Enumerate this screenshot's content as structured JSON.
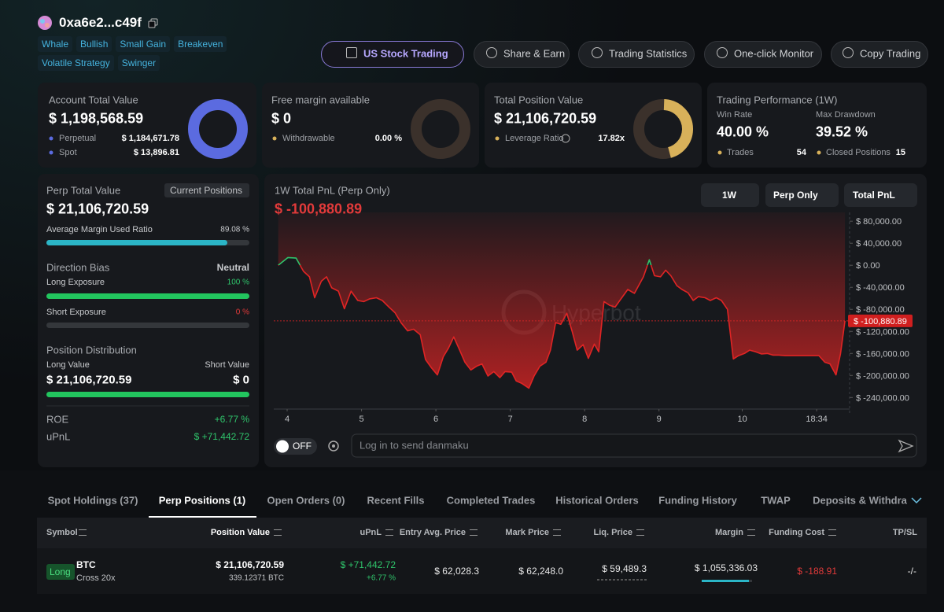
{
  "profile": {
    "address": "0xa6e2...c49f",
    "tags": [
      "Whale",
      "Bullish",
      "Small Gain",
      "Breakeven",
      "Volatile Strategy",
      "Swinger"
    ]
  },
  "nav": [
    "US Stock Trading",
    "Share & Earn",
    "Trading Statistics",
    "One-click Monitor",
    "Copy Trading"
  ],
  "cards": {
    "account": {
      "title": "Account Total Value",
      "value": "$ 1,198,568.59",
      "rows": [
        {
          "label": "Perpetual",
          "value": "$ 1,184,671.78"
        },
        {
          "label": "Spot",
          "value": "$ 13,896.81"
        }
      ]
    },
    "free_margin": {
      "title": "Free margin available",
      "value": "$ 0",
      "label": "Withdrawable",
      "ratio": "0.00 %"
    },
    "position": {
      "title": "Total Position Value",
      "value": "$ 21,106,720.59",
      "label": "Leverage Ratio",
      "ratio": "17.82x"
    },
    "performance": {
      "title": "Trading Performance (1W)",
      "win_rate_label": "Win Rate",
      "win_rate": "40.00 %",
      "drawdown_label": "Max Drawdown",
      "drawdown": "39.52 %",
      "trades_label": "Trades",
      "trades": "54",
      "closed_label": "Closed Positions",
      "closed": "15"
    }
  },
  "perp_panel": {
    "title": "Perp Total Value",
    "button": "Current Positions",
    "value": "$ 21,106,720.59",
    "margin_used": {
      "label": "Average Margin Used Ratio",
      "value": "89.08 %",
      "ratio": 89.08
    },
    "bias_label": "Direction Bias",
    "bias": "Neutral",
    "long_exposure": {
      "label": "Long Exposure",
      "value": "100 %",
      "ratio": 100
    },
    "short_exposure": {
      "label": "Short Exposure",
      "value": "0 %",
      "ratio": 0
    },
    "distribution_label": "Position Distribution",
    "long_label": "Long Value",
    "short_label": "Short Value",
    "long_value": "$ 21,106,720.59",
    "short_value": "$ 0",
    "roe_label": "ROE",
    "roe": "+6.77 %",
    "upnl_label": "uPnL",
    "upnl": "$ +71,442.72"
  },
  "chart_panel": {
    "title": "1W Total PnL (Perp Only)",
    "period": "1W",
    "scope": "Perp Only",
    "metric": "Total PnL",
    "watermark": "Hyperbot",
    "toggle": "OFF",
    "input_placeholder": "Log in to send danmaku"
  },
  "chart_data": {
    "type": "line",
    "color": "#e02424",
    "up_color": "#2fc46b",
    "x": [
      3.88,
      4.01,
      4.12,
      4.22,
      4.3,
      4.37,
      4.46,
      4.53,
      4.6,
      4.69,
      4.77,
      4.86,
      4.95,
      5.03,
      5.11,
      5.2,
      5.28,
      5.37,
      5.45,
      5.53,
      5.62,
      5.7,
      5.79,
      5.86,
      5.94,
      6.02,
      6.1,
      6.17,
      6.24,
      6.32,
      6.39,
      6.47,
      6.55,
      6.62,
      6.7,
      6.78,
      6.86,
      6.93,
      7.02,
      7.08,
      7.15,
      7.25,
      7.32,
      7.4,
      7.48,
      7.54,
      7.61,
      7.68,
      7.76,
      7.83,
      7.9,
      7.98,
      8.05,
      8.13,
      8.19,
      8.26,
      8.34,
      8.41,
      8.5,
      8.58,
      8.67,
      8.73,
      8.79,
      8.87,
      8.94,
      9.02,
      9.09,
      9.16,
      9.24,
      9.31,
      9.39,
      9.46,
      9.53,
      9.62,
      9.69,
      9.77,
      9.84,
      9.92,
      10.0,
      10.07,
      10.15,
      10.22,
      10.3,
      10.38,
      10.46,
      10.53,
      10.61,
      10.7,
      10.77,
      10.85,
      10.93,
      11.01,
      11.08,
      11.15,
      11.23,
      11.3,
      11.38,
      11.44,
      11.5
    ],
    "values": [
      0,
      14000,
      13000,
      -11000,
      -21000,
      -59000,
      -29000,
      -21000,
      -41000,
      -47000,
      -79000,
      -47000,
      -64000,
      -66000,
      -61000,
      -59000,
      -64000,
      -76000,
      -86000,
      -104000,
      -119000,
      -116000,
      -126000,
      -171000,
      -186000,
      -199000,
      -166000,
      -150000,
      -130000,
      -154000,
      -176000,
      -190000,
      -183000,
      -179000,
      -201000,
      -193000,
      -204000,
      -193000,
      -194000,
      -210000,
      -214000,
      -223000,
      -201000,
      -183000,
      -176000,
      -154000,
      -104000,
      -107000,
      -87000,
      -119000,
      -154000,
      -144000,
      -169000,
      -143000,
      -157000,
      -66000,
      -73000,
      -76000,
      -59000,
      -44000,
      -51000,
      -36000,
      -21000,
      10000,
      -19000,
      -21000,
      -9000,
      -19000,
      -37000,
      -44000,
      -50000,
      -64000,
      -57000,
      -59000,
      -64000,
      -59000,
      -64000,
      -80000,
      -170000,
      -164000,
      -160000,
      -154000,
      -157000,
      -161000,
      -160000,
      -163000,
      -163000,
      -164000,
      -164000,
      -164000,
      -164000,
      -164000,
      -164000,
      -164000,
      -176000,
      -179000,
      -199000,
      -161000,
      -100880.89
    ],
    "reference": -100880.89,
    "reference_label": "$ -100,880.89",
    "xlim": [
      3.82,
      11.51
    ],
    "ylim": [
      -261000,
      96000
    ],
    "xticks": [
      4,
      5,
      6,
      7,
      8,
      9,
      {
        "value": 10.12,
        "label": "10"
      },
      {
        "value": 11.12,
        "label": "18:34"
      }
    ],
    "yticks": [
      {
        "value": 80000,
        "label": "$ 80,000.00"
      },
      {
        "value": 40000,
        "label": "$ 40,000.00"
      },
      {
        "value": 0,
        "label": "$ 0.00"
      },
      {
        "value": -40000,
        "label": "$ -40,000.00"
      },
      {
        "value": -80000,
        "label": "$ -80,000.00"
      },
      {
        "value": -120000,
        "label": "$ -120,000.00"
      },
      {
        "value": -160000,
        "label": "$ -160,000.00"
      },
      {
        "value": -200000,
        "label": "$ -200,000.00"
      },
      {
        "value": -240000,
        "label": "$ -240,000.00"
      }
    ]
  },
  "positions": {
    "tabs": [
      "Spot Holdings (37)",
      "Perp Positions (1)",
      "Open Orders (0)",
      "Recent Fills",
      "Completed Trades",
      "Historical Orders",
      "Funding History",
      "TWAP",
      "Deposits & Withdra"
    ],
    "active_tab": 1,
    "columns": [
      "Symbol",
      "Position Value",
      "uPnL",
      "Entry Avg. Price",
      "Mark Price",
      "Liq. Price",
      "Margin",
      "Funding Cost",
      "TP/SL"
    ],
    "rows": [
      {
        "side": "Long",
        "symbol": "BTC",
        "mode": "Cross 20x",
        "position_value": "$ 21,106,720.59",
        "size": "339.12371 BTC",
        "upnl": "$ +71,442.72",
        "upnl_pct": "+6.77 %",
        "entry": "$ 62,028.3",
        "mark": "$ 62,248.0",
        "liq": "$ 59,489.3",
        "margin": "$ 1,055,336.03",
        "funding": "$ -188.91",
        "tpsl": "-/-"
      }
    ]
  }
}
